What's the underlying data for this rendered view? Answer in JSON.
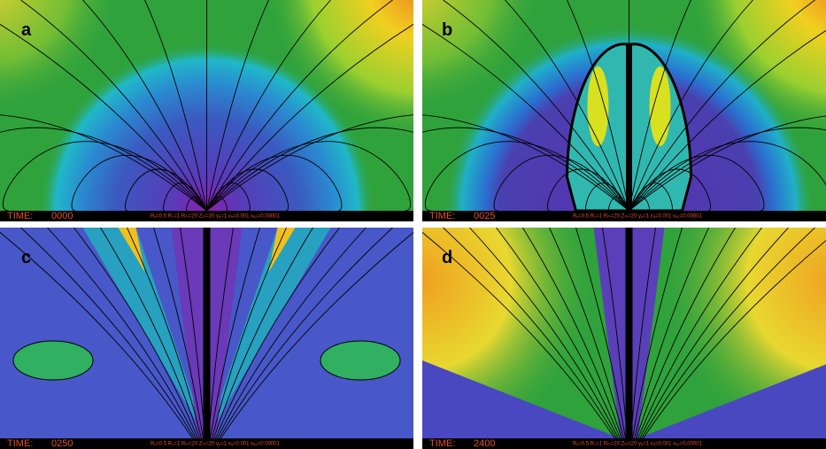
{
  "panels": [
    {
      "label": "a",
      "time_label": "TIME:",
      "time": "0000",
      "params": "Rᵥ=0.5  Rₛ=1  Rₘ=20  Zₘ=20    γₐ=1  vₐ=0.001  vₐ₂=0.00001"
    },
    {
      "label": "b",
      "time_label": "TIME:",
      "time": "0025",
      "params": "Rᵥ=0.5  Rₛ=1  Rₘ=20  Zₘ=20    γₐ=1  vₐ=0.001  vₐ₂=0.00001"
    },
    {
      "label": "c",
      "time_label": "TIME:",
      "time": "0250",
      "params": "Rᵥ=0.5  Rₛ=1  Rₘ=20  Zₘ=20    γₐ=1  vₐ=0.001  vₐ₂=0.00001"
    },
    {
      "label": "d",
      "time_label": "TIME:",
      "time": "2400",
      "params": "Rᵥ=0.5  Rₛ=1  Rₘ=20  Zₘ=20    γₐ=1  vₐ=0.001  vₐ₂=0.00001"
    }
  ]
}
